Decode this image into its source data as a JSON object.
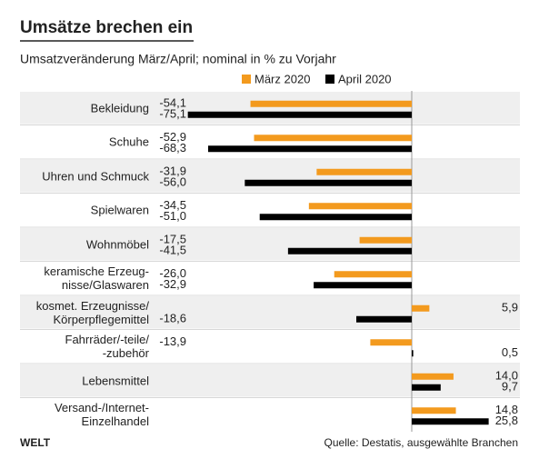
{
  "chart_data": {
    "type": "hbar",
    "title": "Umsätze brechen ein",
    "subtitle": "Umsatzveränderung März/April; nominal in % zu Vorjahr",
    "categories": [
      "Bekleidung",
      "Schuhe",
      "Uhren und Schmuck",
      "Spielwaren",
      "Wohnmöbel",
      "keramische Erzeug-\nnisse/Glaswaren",
      "kosmet. Erzeugnisse/\nKörperpflegemittel",
      "Fahrräder/-teile/\n-zubehör",
      "Lebensmittel",
      "Versand-/Internet-\nEinzelhandel"
    ],
    "series": [
      {
        "name": "März 2020",
        "color": "#f39a1e",
        "values": [
          -54.1,
          -52.9,
          -31.9,
          -34.5,
          -17.5,
          -26.0,
          5.9,
          -13.9,
          14.0,
          14.8
        ],
        "value_labels": [
          "-54,1",
          "-52,9",
          "-31,9",
          "-34,5",
          "-17,5",
          "-26,0",
          "5,9",
          "-13,9",
          "14,0",
          "14,8"
        ]
      },
      {
        "name": "April 2020",
        "color": "#000000",
        "values": [
          -75.1,
          -68.3,
          -56.0,
          -51.0,
          -41.5,
          -32.9,
          -18.6,
          0.5,
          9.7,
          25.8
        ],
        "value_labels": [
          "-75,1",
          "-68,3",
          "-56,0",
          "-51,0",
          "-41,5",
          "-32,9",
          "-18,6",
          "0,5",
          "9,7",
          "25,8"
        ]
      }
    ],
    "brand": "WELT",
    "source": "Quelle: Destatis, ausgewählte Branchen"
  }
}
